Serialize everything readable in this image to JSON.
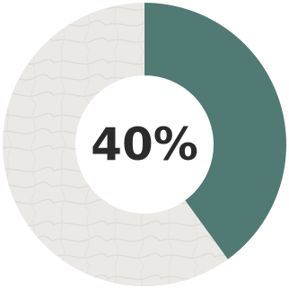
{
  "chart_data": {
    "type": "pie",
    "variant": "donut",
    "slices": [
      {
        "value": 40,
        "color": "#517a74"
      },
      {
        "value": 60,
        "color": "#eae9e6"
      }
    ],
    "center_label": "40%",
    "start": "top",
    "direction": "clockwise"
  },
  "colors": {
    "accent": "#517a74",
    "remainder": "#eae9e6",
    "remainder_texture": "#dddcd8",
    "center": "#ffffff",
    "text": "#2b2b2b"
  }
}
